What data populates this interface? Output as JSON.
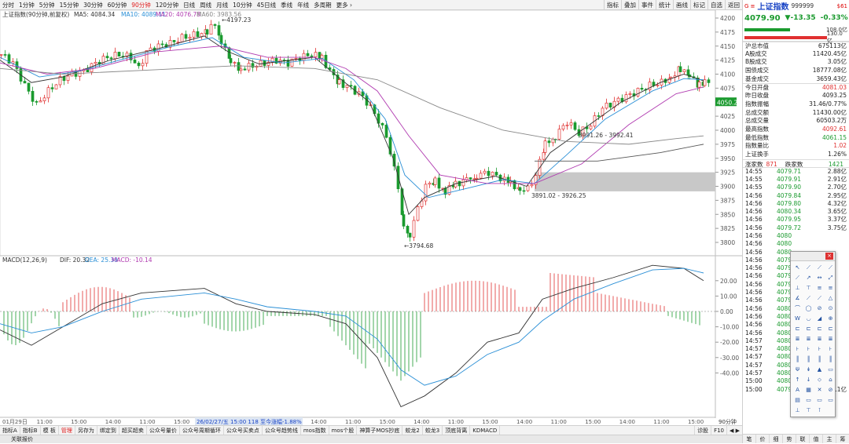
{
  "topbar": {
    "timeframes": [
      "分时",
      "1分钟",
      "5分钟",
      "15分钟",
      "30分钟",
      "60分钟",
      "90分钟",
      "120分钟",
      "日线",
      "周线",
      "月线",
      "10分钟",
      "45日线",
      "季线",
      "年线",
      "多周期",
      "更多 ›"
    ],
    "active_timeframe": "90分钟",
    "tools": [
      "指标",
      "叠加",
      "事件",
      "统计",
      "画线",
      "标记",
      "自选",
      "返回"
    ]
  },
  "chart": {
    "legend_title": "上证指数(90分钟,前复权)",
    "ma5": "MA5: 4084.34",
    "ma10": "MA10: 4089.11",
    "ma20": "MA20: 4076.78",
    "ma60": "MA60: 3983.56",
    "high_label": "4197.23",
    "low_label": "3794.68",
    "annot1": "3991.26 - 3992.41",
    "annot2": "3891.02 - 3926.25",
    "price_tag": "4050.2",
    "price_ticks": [
      "4200",
      "4175",
      "4150",
      "4125",
      "4100",
      "4075",
      "4050",
      "4025",
      "4000",
      "3975",
      "3950",
      "3925",
      "3900",
      "3875",
      "3850",
      "3825",
      "3800"
    ],
    "macd_legend_title": "MACD(12,26,9)",
    "dif": "DIF: 20.32",
    "dea": "DEA: 25.39",
    "macd": "MACD: -10.14",
    "macd_ticks": [
      "20.00",
      "10.00",
      "0.00",
      "-10.00",
      "-20.00",
      "-30.00",
      "-40.00"
    ],
    "time_labels": [
      "01月29日",
      "11:00",
      "15:00",
      "14:00",
      "11:00",
      "15:00",
      "14:00",
      "11:00",
      "15:00",
      "14:00",
      "11:00",
      "15:00",
      "14:00",
      "11:00",
      "15:00",
      "14:00",
      "11:00",
      "15:00",
      "14:00",
      "11:00",
      "15:00"
    ],
    "cursor_info": "26/02/27/五 15:00 118 至今涨幅-1.88%",
    "period_label": "90分钟",
    "colors": {
      "up": "#e03030",
      "down": "#1a9a2e",
      "ma5": "#333333",
      "ma10": "#2a8fd6",
      "ma20": "#b03ab0",
      "ma60": "#888888",
      "gap": "#c8c8c8"
    }
  },
  "bottombar": {
    "tabs": [
      "指标A",
      "指标B",
      "模 板",
      "管理",
      "另存为",
      "绑定到",
      "超买超卖",
      "公众号量价",
      "公众号周期循环",
      "公众号买卖点",
      "公众号趋势线",
      "mos指数",
      "mos个股",
      "神算子MOS抄底",
      "蛟龙2",
      "蛟龙3",
      "顶底背离",
      "KDMACD"
    ],
    "active_tab": "管理",
    "right": [
      "诊股",
      "F10",
      "◀ ▶"
    ]
  },
  "status": {
    "text": "关联报价"
  },
  "quote": {
    "tag": "G ≡",
    "name": "上证指数",
    "code": "999999",
    "flag": "$61",
    "price": "4079.90",
    "change": "▼-13.35",
    "pct": "-0.33%",
    "bar_up": "108.0亿",
    "bar_down": "130.0亿",
    "stats": [
      {
        "k": "沪总市值",
        "v": "675113亿"
      },
      {
        "k": "A股成交",
        "v": "11420.45亿"
      },
      {
        "k": "B股成交",
        "v": "3.05亿"
      },
      {
        "k": "国债成交",
        "v": "18777.08亿"
      },
      {
        "k": "基金成交",
        "v": "3659.43亿"
      },
      {
        "k": "今日开盘",
        "v": "4081.03"
      },
      {
        "k": "昨日收盘",
        "v": "4093.25"
      },
      {
        "k": "指数振幅",
        "v": "31.46/0.77%"
      },
      {
        "k": "总成交额",
        "v": "11430.00亿"
      },
      {
        "k": "总成交量",
        "v": "60503.2万"
      },
      {
        "k": "最高指数",
        "v": "4092.61"
      },
      {
        "k": "最低指数",
        "v": "4061.15"
      },
      {
        "k": "指数量比",
        "v": "1.02"
      },
      {
        "k": "上证换手",
        "v": "1.26%"
      }
    ],
    "up_label": "涨家数",
    "up_count": "871",
    "down_label": "跌家数",
    "down_count": "1421",
    "ticks": [
      {
        "t": "14:55",
        "p": "4079.71",
        "a": "2.88亿"
      },
      {
        "t": "14:55",
        "p": "4079.91",
        "a": "2.91亿"
      },
      {
        "t": "14:55",
        "p": "4079.90",
        "a": "2.70亿"
      },
      {
        "t": "14:56",
        "p": "4079.84",
        "a": "2.95亿"
      },
      {
        "t": "14:56",
        "p": "4079.80",
        "a": "4.32亿"
      },
      {
        "t": "14:56",
        "p": "4080.34",
        "a": "3.65亿"
      },
      {
        "t": "14:56",
        "p": "4079.95",
        "a": "3.37亿"
      },
      {
        "t": "14:56",
        "p": "4079.72",
        "a": "3.75亿"
      },
      {
        "t": "14:56",
        "p": "4080",
        "a": ""
      },
      {
        "t": "14:56",
        "p": "4080",
        "a": ""
      },
      {
        "t": "14:56",
        "p": "4080",
        "a": ""
      },
      {
        "t": "14:56",
        "p": "4079",
        "a": ""
      },
      {
        "t": "14:56",
        "p": "4079",
        "a": ""
      },
      {
        "t": "14:56",
        "p": "4079",
        "a": ""
      },
      {
        "t": "14:56",
        "p": "4079",
        "a": ""
      },
      {
        "t": "14:56",
        "p": "4079",
        "a": ""
      },
      {
        "t": "14:56",
        "p": "4079",
        "a": ""
      },
      {
        "t": "14:56",
        "p": "4080",
        "a": ""
      },
      {
        "t": "14:56",
        "p": "4080",
        "a": ""
      },
      {
        "t": "14:56",
        "p": "4080",
        "a": ""
      },
      {
        "t": "14:56",
        "p": "4080",
        "a": ""
      },
      {
        "t": "14:57",
        "p": "4080",
        "a": ""
      },
      {
        "t": "14:57",
        "p": "4080",
        "a": ""
      },
      {
        "t": "14:57",
        "p": "4080",
        "a": ""
      },
      {
        "t": "14:57",
        "p": "4080",
        "a": ""
      },
      {
        "t": "14:57",
        "p": "4080",
        "a": ""
      },
      {
        "t": "15:00",
        "p": "4080",
        "a": ""
      },
      {
        "t": "15:00",
        "p": "4079.90",
        "a": "29.1亿"
      }
    ],
    "tabs": [
      "笔",
      "价",
      "细",
      "势",
      "联",
      "值",
      "主",
      "筹"
    ]
  }
}
